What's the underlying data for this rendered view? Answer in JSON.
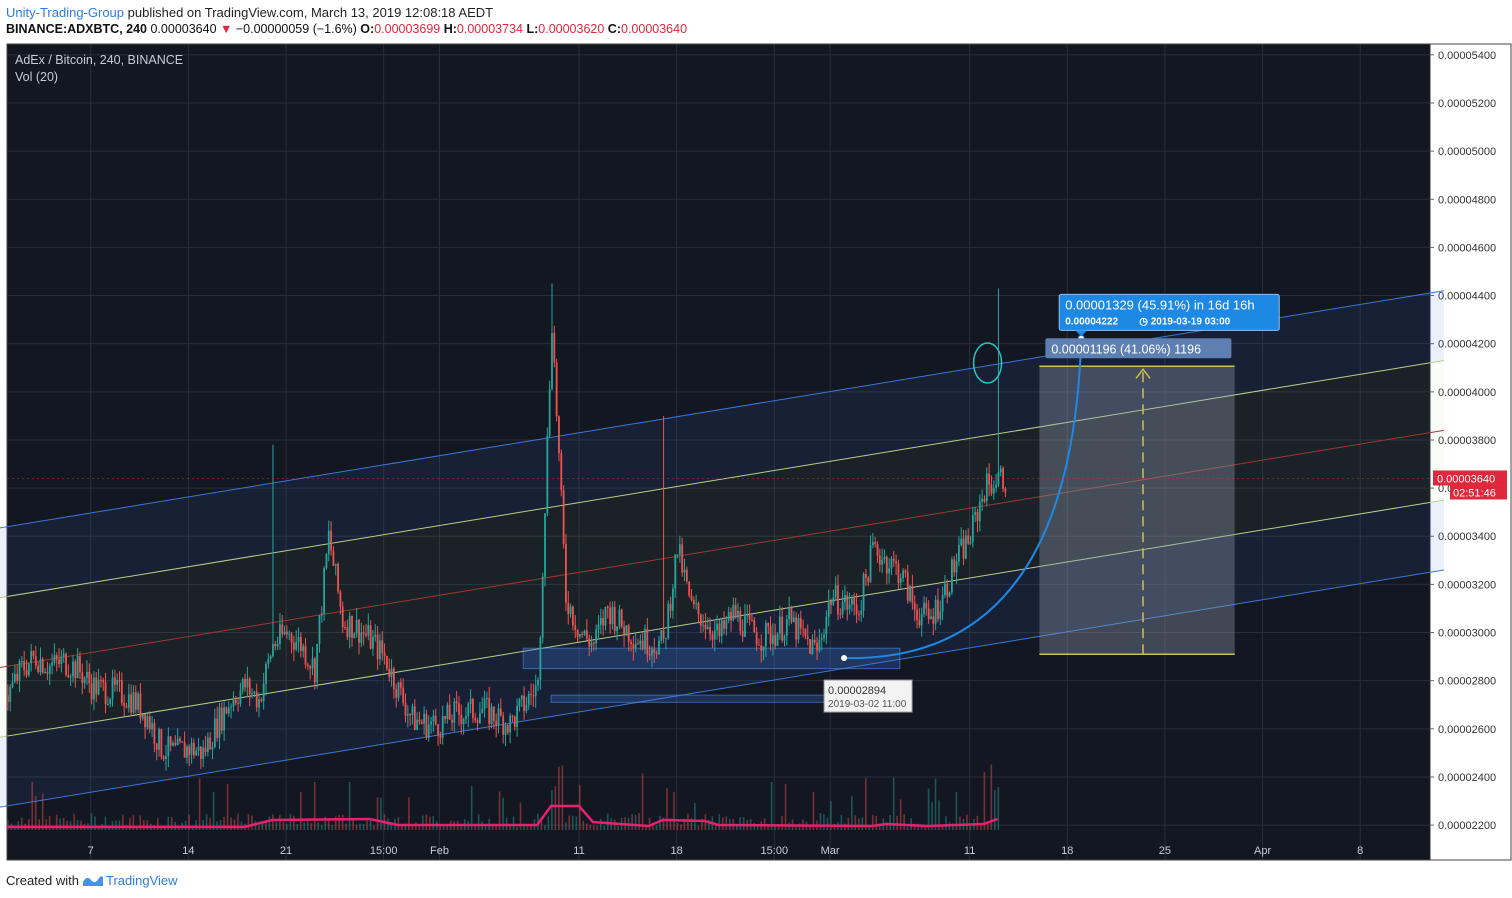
{
  "header": {
    "author": "Unity-Trading-Group",
    "published_text": "published on TradingView.com, March 13, 2019 12:08:18 AEDT",
    "symbol_line": {
      "symbol": "BINANCE:ADXBTC, 240",
      "price": "0.00003640",
      "change": "−0.00000059 (−1.6%)",
      "open_label": "O:",
      "open": "0.00003699",
      "high_label": "H:",
      "high": "0.00003734",
      "low_label": "L:",
      "low": "0.00003620",
      "close_label": "C:",
      "close": "0.00003640"
    }
  },
  "legend": {
    "title": "AdEx / Bitcoin, 240, BINANCE",
    "volume": "Vol (20)"
  },
  "footer": {
    "created_with": "Created with",
    "brand": "TradingView"
  },
  "colors": {
    "background": "#131722",
    "up": "#26a69a",
    "down": "#ef5350",
    "channel_outer": "#3a78d6",
    "channel_inner": "#b8d08a",
    "channel_mid": "#9c3a2c",
    "volume_ma": "#e8206f",
    "callout": "#1e88e5",
    "price_tag": "#e0283d"
  },
  "chart_data": {
    "type": "candlestick",
    "title": "AdEx / Bitcoin, 240, BINANCE",
    "ylim": [
      2.055e-05,
      5.445e-05
    ],
    "y_ticks": [
      "0.00005400",
      "0.00005200",
      "0.00005000",
      "0.00004800",
      "0.00004600",
      "0.00004400",
      "0.00004200",
      "0.00004000",
      "0.00003800",
      "0.00003600",
      "0.00003400",
      "0.00003200",
      "0.00003000",
      "0.00002800",
      "0.00002600",
      "0.00002400",
      "0.00002200"
    ],
    "x_ticks": [
      "7",
      "14",
      "21",
      "15:00",
      "Feb",
      "11",
      "18",
      "15:00",
      "Mar",
      "11",
      "18",
      "25",
      "Apr",
      "8"
    ],
    "x_tick_dates": [
      "2019-01-07",
      "2019-01-14",
      "2019-01-21",
      "2019-01-28",
      "2019-02-01",
      "2019-02-11",
      "2019-02-18",
      "2019-02-25",
      "2019-03-01",
      "2019-03-11",
      "2019-03-18",
      "2019-03-25",
      "2019-04-01",
      "2019-04-08"
    ],
    "price_path": [
      [
        "2019-01-01",
        2.74e-05
      ],
      [
        "2019-01-02",
        2.85e-05
      ],
      [
        "2019-01-03",
        2.9e-05
      ],
      [
        "2019-01-04",
        2.86e-05
      ],
      [
        "2019-01-05",
        2.88e-05
      ],
      [
        "2019-01-06",
        2.85e-05
      ],
      [
        "2019-01-07",
        2.78e-05
      ],
      [
        "2019-01-08",
        2.76e-05
      ],
      [
        "2019-01-09",
        2.75e-05
      ],
      [
        "2019-01-10",
        2.72e-05
      ],
      [
        "2019-01-11",
        2.65e-05
      ],
      [
        "2019-01-12",
        2.52e-05
      ],
      [
        "2019-01-13",
        2.5e-05
      ],
      [
        "2019-01-14",
        2.52e-05
      ],
      [
        "2019-01-15",
        2.5e-05
      ],
      [
        "2019-01-16",
        2.62e-05
      ],
      [
        "2019-01-17",
        2.72e-05
      ],
      [
        "2019-01-18",
        2.78e-05
      ],
      [
        "2019-01-19",
        2.72e-05
      ],
      [
        "2019-01-20",
        2.95e-05
      ],
      [
        "2019-01-21",
        3e-05
      ],
      [
        "2019-01-22",
        2.95e-05
      ],
      [
        "2019-01-23",
        2.85e-05
      ],
      [
        "2019-01-24",
        3.4e-05
      ],
      [
        "2019-01-25",
        3.05e-05
      ],
      [
        "2019-01-26",
        3.02e-05
      ],
      [
        "2019-01-27",
        2.97e-05
      ],
      [
        "2019-01-28",
        2.9e-05
      ],
      [
        "2019-01-29",
        2.76e-05
      ],
      [
        "2019-01-30",
        2.64e-05
      ],
      [
        "2019-01-31",
        2.62e-05
      ],
      [
        "2019-02-01",
        2.62e-05
      ],
      [
        "2019-02-02",
        2.66e-05
      ],
      [
        "2019-02-03",
        2.67e-05
      ],
      [
        "2019-02-04",
        2.68e-05
      ],
      [
        "2019-02-05",
        2.65e-05
      ],
      [
        "2019-02-06",
        2.62e-05
      ],
      [
        "2019-02-07",
        2.7e-05
      ],
      [
        "2019-02-08",
        2.78e-05
      ],
      [
        "2019-02-09",
        4.3e-05
      ],
      [
        "2019-02-10",
        3.15e-05
      ],
      [
        "2019-02-11",
        3e-05
      ],
      [
        "2019-02-12",
        2.95e-05
      ],
      [
        "2019-02-13",
        3.1e-05
      ],
      [
        "2019-02-14",
        3.03e-05
      ],
      [
        "2019-02-15",
        2.98e-05
      ],
      [
        "2019-02-16",
        2.96e-05
      ],
      [
        "2019-02-17",
        2.95e-05
      ],
      [
        "2019-02-18",
        3.35e-05
      ],
      [
        "2019-02-19",
        3.1e-05
      ],
      [
        "2019-02-20",
        3.05e-05
      ],
      [
        "2019-02-21",
        2.98e-05
      ],
      [
        "2019-02-22",
        3.08e-05
      ],
      [
        "2019-02-23",
        3.02e-05
      ],
      [
        "2019-02-24",
        2.98e-05
      ],
      [
        "2019-02-25",
        3e-05
      ],
      [
        "2019-02-26",
        3.05e-05
      ],
      [
        "2019-02-27",
        2.98e-05
      ],
      [
        "2019-02-28",
        2.92e-05
      ],
      [
        "2019-03-01",
        3.15e-05
      ],
      [
        "2019-03-02",
        3.12e-05
      ],
      [
        "2019-03-03",
        3.1e-05
      ],
      [
        "2019-03-04",
        3.35e-05
      ],
      [
        "2019-03-05",
        3.3e-05
      ],
      [
        "2019-03-06",
        3.25e-05
      ],
      [
        "2019-03-07",
        3.1e-05
      ],
      [
        "2019-03-08",
        3.05e-05
      ],
      [
        "2019-03-09",
        3.15e-05
      ],
      [
        "2019-03-10",
        3.3e-05
      ],
      [
        "2019-03-11",
        3.4e-05
      ],
      [
        "2019-03-12",
        3.6e-05
      ],
      [
        "2019-03-13",
        3.64e-05
      ]
    ],
    "notable_wicks": [
      {
        "date": "2019-01-20",
        "high": 3.78e-05
      },
      {
        "date": "2019-02-09",
        "high": 4.45e-05
      },
      {
        "date": "2019-02-17",
        "high": 3.9e-05
      },
      {
        "date": "2019-03-13",
        "high": 4.43e-05
      }
    ],
    "channel": {
      "outer_upper": [
        [
          "2018-12-31",
          3.43e-05
        ],
        [
          "2019-04-14",
          4.42e-05
        ]
      ],
      "inner_upper": [
        [
          "2018-12-31",
          3.14e-05
        ],
        [
          "2019-04-14",
          4.13e-05
        ]
      ],
      "median": [
        [
          "2018-12-31",
          2.85e-05
        ],
        [
          "2019-04-14",
          3.84e-05
        ]
      ],
      "inner_lower": [
        [
          "2018-12-31",
          2.56e-05
        ],
        [
          "2019-04-14",
          3.55e-05
        ]
      ],
      "outer_lower": [
        [
          "2018-12-31",
          2.27e-05
        ],
        [
          "2019-04-14",
          3.26e-05
        ]
      ]
    },
    "support_zones": [
      {
        "from": "2019-02-07",
        "to": "2019-03-06",
        "low": 2.85e-05,
        "high": 2.935e-05
      },
      {
        "from": "2019-02-09",
        "to": "2019-03-06",
        "low": 2.71e-05,
        "high": 2.74e-05
      }
    ],
    "curve_projection": {
      "from": [
        "2019-03-02",
        2.894e-05
      ],
      "to": [
        "2019-03-19",
        4.222e-05
      ]
    },
    "price_range": {
      "from": "2019-03-16",
      "to": "2019-03-30",
      "low": 2.91e-05,
      "high": 4.106e-05,
      "label": "0.00001196 (41.06%) 1196"
    },
    "callout": {
      "line1": "0.00001329 (45.91%) in 16d 16h",
      "line2_price": "0.00004222",
      "line2_time": "2019-03-19  03:00"
    },
    "low_marker": {
      "price": "0.00002894",
      "time": "2019-03-02 11:00"
    },
    "last_price": {
      "value": "0.00003640",
      "countdown": "02:51:46"
    },
    "ellipse_highlight": {
      "date": "2019-03-12",
      "price": 4.12e-05
    },
    "volume_ma": [
      [
        "2019-01-01",
        0.03
      ],
      [
        "2019-01-18",
        0.03
      ],
      [
        "2019-01-20",
        0.1
      ],
      [
        "2019-01-27",
        0.11
      ],
      [
        "2019-01-29",
        0.05
      ],
      [
        "2019-02-08",
        0.05
      ],
      [
        "2019-02-09",
        0.24
      ],
      [
        "2019-02-11",
        0.24
      ],
      [
        "2019-02-12",
        0.08
      ],
      [
        "2019-02-16",
        0.04
      ],
      [
        "2019-02-17",
        0.1
      ],
      [
        "2019-02-20",
        0.09
      ],
      [
        "2019-02-21",
        0.05
      ],
      [
        "2019-03-04",
        0.04
      ],
      [
        "2019-03-05",
        0.06
      ],
      [
        "2019-03-08",
        0.04
      ],
      [
        "2019-03-12",
        0.06
      ],
      [
        "2019-03-13",
        0.11
      ]
    ]
  }
}
